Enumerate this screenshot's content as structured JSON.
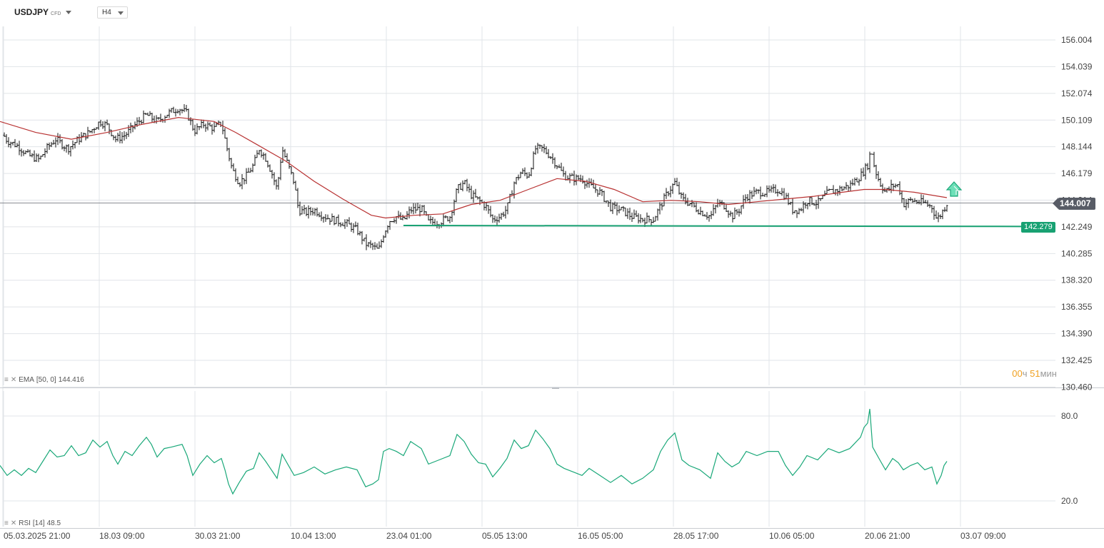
{
  "header": {
    "symbol": "USDJPY",
    "symbol_type": "CFD",
    "timeframe": "H4"
  },
  "chart_data": [
    {
      "type": "candlestick",
      "symbol": "USDJPY",
      "timeframe": "H4",
      "y_axis": {
        "ticks": [
          "156.004",
          "154.039",
          "152.074",
          "150.109",
          "148.144",
          "146.179",
          "144.214",
          "142.249",
          "140.285",
          "138.320",
          "136.355",
          "134.390",
          "132.425",
          "130.460"
        ],
        "range": [
          130.46,
          157.2
        ]
      },
      "x_axis": {
        "ticks": [
          "05.03.2025  21:00",
          "18.03  09:00",
          "30.03  21:00",
          "10.04  13:00",
          "23.04  01:00",
          "05.05  13:00",
          "16.05  05:00",
          "28.05  17:00",
          "10.06  05:00",
          "20.06  21:00",
          "03.07  09:00"
        ]
      },
      "price_path": [
        [
          0,
          149.4
        ],
        [
          10,
          148.6
        ],
        [
          25,
          148.2
        ],
        [
          40,
          147.5
        ],
        [
          55,
          147.2
        ],
        [
          65,
          148.0
        ],
        [
          78,
          148.7
        ],
        [
          95,
          148.0
        ],
        [
          110,
          148.7
        ],
        [
          125,
          149.2
        ],
        [
          140,
          150.0
        ],
        [
          150,
          149.7
        ],
        [
          162,
          148.7
        ],
        [
          175,
          149.0
        ],
        [
          190,
          149.8
        ],
        [
          205,
          150.5
        ],
        [
          220,
          150.0
        ],
        [
          235,
          150.6
        ],
        [
          250,
          151.0
        ],
        [
          262,
          150.6
        ],
        [
          272,
          149.3
        ],
        [
          285,
          149.8
        ],
        [
          300,
          149.5
        ],
        [
          310,
          149.9
        ],
        [
          318,
          148.0
        ],
        [
          325,
          146.5
        ],
        [
          335,
          145.5
        ],
        [
          345,
          146.0
        ],
        [
          355,
          146.8
        ],
        [
          363,
          148.0
        ],
        [
          372,
          147.3
        ],
        [
          380,
          146.3
        ],
        [
          388,
          145.0
        ],
        [
          395,
          148.0
        ],
        [
          402,
          147.0
        ],
        [
          412,
          145.5
        ],
        [
          418,
          143.5
        ],
        [
          428,
          143.3
        ],
        [
          440,
          143.5
        ],
        [
          455,
          143.0
        ],
        [
          470,
          142.7
        ],
        [
          485,
          142.5
        ],
        [
          500,
          142.0
        ],
        [
          512,
          141.0
        ],
        [
          522,
          140.8
        ],
        [
          530,
          140.5
        ],
        [
          537,
          141.7
        ],
        [
          545,
          142.7
        ],
        [
          555,
          143.0
        ],
        [
          565,
          142.7
        ],
        [
          575,
          143.5
        ],
        [
          590,
          143.6
        ],
        [
          600,
          142.6
        ],
        [
          615,
          142.6
        ],
        [
          630,
          143.0
        ],
        [
          640,
          145.0
        ],
        [
          650,
          145.5
        ],
        [
          660,
          144.6
        ],
        [
          670,
          144.2
        ],
        [
          680,
          143.8
        ],
        [
          690,
          142.8
        ],
        [
          700,
          143.0
        ],
        [
          710,
          143.6
        ],
        [
          720,
          145.5
        ],
        [
          730,
          146.3
        ],
        [
          740,
          146.0
        ],
        [
          750,
          148.0
        ],
        [
          760,
          148.0
        ],
        [
          770,
          147.5
        ],
        [
          780,
          146.8
        ],
        [
          790,
          146.0
        ],
        [
          805,
          145.8
        ],
        [
          815,
          145.8
        ],
        [
          825,
          145.3
        ],
        [
          840,
          144.8
        ],
        [
          855,
          143.7
        ],
        [
          870,
          143.5
        ],
        [
          885,
          143.0
        ],
        [
          900,
          142.8
        ],
        [
          915,
          142.8
        ],
        [
          925,
          143.8
        ],
        [
          935,
          144.8
        ],
        [
          945,
          145.5
        ],
        [
          955,
          144.3
        ],
        [
          965,
          144.0
        ],
        [
          980,
          143.4
        ],
        [
          995,
          143.0
        ],
        [
          1005,
          144.0
        ],
        [
          1015,
          143.8
        ],
        [
          1025,
          143.0
        ],
        [
          1035,
          143.5
        ],
        [
          1045,
          144.5
        ],
        [
          1060,
          144.8
        ],
        [
          1075,
          144.8
        ],
        [
          1090,
          145.0
        ],
        [
          1100,
          144.5
        ],
        [
          1110,
          143.5
        ],
        [
          1120,
          143.5
        ],
        [
          1130,
          144.2
        ],
        [
          1145,
          144.0
        ],
        [
          1160,
          144.8
        ],
        [
          1175,
          145.0
        ],
        [
          1190,
          145.3
        ],
        [
          1205,
          146.0
        ],
        [
          1215,
          146.8
        ],
        [
          1220,
          148.0
        ],
        [
          1225,
          146.5
        ],
        [
          1232,
          145.5
        ],
        [
          1240,
          144.8
        ],
        [
          1250,
          145.3
        ],
        [
          1258,
          145.3
        ],
        [
          1265,
          143.9
        ],
        [
          1275,
          144.2
        ],
        [
          1285,
          144.1
        ],
        [
          1295,
          144.0
        ],
        [
          1305,
          143.7
        ],
        [
          1312,
          142.8
        ],
        [
          1318,
          143.2
        ],
        [
          1322,
          143.6
        ],
        [
          1326,
          144.0
        ]
      ],
      "ema": {
        "label": "EMA",
        "params": "[50, 0]",
        "value": "144.416",
        "color": "#b83232",
        "path": [
          [
            0,
            150.0
          ],
          [
            50,
            149.2
          ],
          [
            100,
            148.7
          ],
          [
            150,
            149.2
          ],
          [
            200,
            149.8
          ],
          [
            250,
            150.3
          ],
          [
            300,
            150.0
          ],
          [
            330,
            149.2
          ],
          [
            360,
            148.3
          ],
          [
            400,
            147.1
          ],
          [
            440,
            145.6
          ],
          [
            480,
            144.3
          ],
          [
            520,
            143.1
          ],
          [
            540,
            142.9
          ],
          [
            580,
            143.1
          ],
          [
            620,
            143.2
          ],
          [
            660,
            143.9
          ],
          [
            700,
            144.2
          ],
          [
            740,
            145.0
          ],
          [
            780,
            145.8
          ],
          [
            820,
            145.6
          ],
          [
            860,
            145.0
          ],
          [
            900,
            144.1
          ],
          [
            940,
            144.2
          ],
          [
            980,
            144.1
          ],
          [
            1020,
            143.9
          ],
          [
            1060,
            144.1
          ],
          [
            1100,
            144.3
          ],
          [
            1140,
            144.5
          ],
          [
            1180,
            144.8
          ],
          [
            1210,
            145.0
          ],
          [
            1240,
            145.0
          ],
          [
            1280,
            144.8
          ],
          [
            1326,
            144.4
          ]
        ]
      },
      "last_price": "144.007",
      "level": {
        "price": "142.279",
        "color": "#18a172",
        "start_x": 565,
        "start_value": 142.35
      },
      "timer": {
        "hours": "00",
        "hours_unit": "ч",
        "minutes": "51",
        "minutes_unit": "мин"
      }
    },
    {
      "type": "line",
      "indicator": "RSI",
      "params": "[14]",
      "value": "48.5",
      "color": "#1aa879",
      "y_ticks": [
        "80.0",
        "20.0"
      ],
      "range": [
        10,
        92
      ],
      "path": [
        [
          0,
          45
        ],
        [
          10,
          38
        ],
        [
          20,
          42
        ],
        [
          30,
          38
        ],
        [
          40,
          43
        ],
        [
          50,
          40
        ],
        [
          60,
          48
        ],
        [
          70,
          56
        ],
        [
          80,
          51
        ],
        [
          90,
          52
        ],
        [
          100,
          59
        ],
        [
          110,
          52
        ],
        [
          120,
          54
        ],
        [
          130,
          63
        ],
        [
          140,
          58
        ],
        [
          150,
          62
        ],
        [
          158,
          52
        ],
        [
          165,
          46
        ],
        [
          175,
          55
        ],
        [
          185,
          52
        ],
        [
          195,
          59
        ],
        [
          205,
          65
        ],
        [
          212,
          60
        ],
        [
          220,
          51
        ],
        [
          230,
          57
        ],
        [
          240,
          58
        ],
        [
          255,
          60
        ],
        [
          262,
          52
        ],
        [
          270,
          38
        ],
        [
          280,
          46
        ],
        [
          290,
          52
        ],
        [
          300,
          47
        ],
        [
          310,
          50
        ],
        [
          315,
          42
        ],
        [
          320,
          32
        ],
        [
          326,
          25
        ],
        [
          335,
          33
        ],
        [
          345,
          41
        ],
        [
          355,
          43
        ],
        [
          363,
          54
        ],
        [
          372,
          48
        ],
        [
          380,
          42
        ],
        [
          388,
          36
        ],
        [
          395,
          53
        ],
        [
          404,
          45
        ],
        [
          412,
          38
        ],
        [
          425,
          40
        ],
        [
          440,
          44
        ],
        [
          455,
          39
        ],
        [
          470,
          42
        ],
        [
          485,
          44
        ],
        [
          500,
          42
        ],
        [
          512,
          30
        ],
        [
          522,
          32
        ],
        [
          530,
          35
        ],
        [
          537,
          55
        ],
        [
          545,
          57
        ],
        [
          555,
          55
        ],
        [
          565,
          52
        ],
        [
          575,
          62
        ],
        [
          590,
          57
        ],
        [
          600,
          46
        ],
        [
          615,
          49
        ],
        [
          630,
          52
        ],
        [
          640,
          67
        ],
        [
          650,
          62
        ],
        [
          660,
          53
        ],
        [
          670,
          47
        ],
        [
          680,
          46
        ],
        [
          690,
          37
        ],
        [
          700,
          43
        ],
        [
          710,
          50
        ],
        [
          720,
          63
        ],
        [
          730,
          57
        ],
        [
          740,
          59
        ],
        [
          750,
          70
        ],
        [
          760,
          64
        ],
        [
          770,
          57
        ],
        [
          780,
          46
        ],
        [
          790,
          43
        ],
        [
          805,
          40
        ],
        [
          815,
          38
        ],
        [
          825,
          43
        ],
        [
          840,
          38
        ],
        [
          855,
          33
        ],
        [
          870,
          38
        ],
        [
          885,
          32
        ],
        [
          900,
          36
        ],
        [
          915,
          42
        ],
        [
          925,
          55
        ],
        [
          935,
          63
        ],
        [
          945,
          68
        ],
        [
          955,
          49
        ],
        [
          965,
          45
        ],
        [
          980,
          42
        ],
        [
          995,
          36
        ],
        [
          1005,
          54
        ],
        [
          1015,
          48
        ],
        [
          1025,
          44
        ],
        [
          1035,
          47
        ],
        [
          1045,
          55
        ],
        [
          1060,
          52
        ],
        [
          1075,
          55
        ],
        [
          1090,
          55
        ],
        [
          1100,
          45
        ],
        [
          1110,
          38
        ],
        [
          1120,
          44
        ],
        [
          1130,
          52
        ],
        [
          1145,
          49
        ],
        [
          1160,
          57
        ],
        [
          1175,
          54
        ],
        [
          1190,
          57
        ],
        [
          1205,
          65
        ],
        [
          1210,
          72
        ],
        [
          1215,
          75
        ],
        [
          1218,
          85
        ],
        [
          1222,
          58
        ],
        [
          1232,
          49
        ],
        [
          1240,
          42
        ],
        [
          1250,
          50
        ],
        [
          1258,
          47
        ],
        [
          1265,
          42
        ],
        [
          1275,
          45
        ],
        [
          1285,
          47
        ],
        [
          1295,
          42
        ],
        [
          1305,
          44
        ],
        [
          1312,
          32
        ],
        [
          1318,
          38
        ],
        [
          1322,
          45
        ],
        [
          1326,
          48
        ]
      ]
    }
  ]
}
